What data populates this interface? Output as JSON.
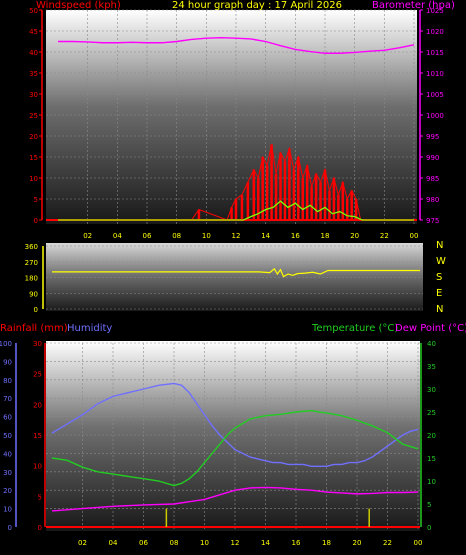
{
  "colors": {
    "background": "#000000",
    "wind": "#ff0000",
    "gust": "#ff0000",
    "wind_avg": "#7fff00",
    "barometer": "#ff00ff",
    "direction": "#ffff00",
    "rainfall": "#ff0000",
    "humidity": "#7070ff",
    "temperature": "#22cc22",
    "dewpoint": "#ff00ff",
    "rain_bars": "#cccc00",
    "title": "#ffff00"
  },
  "chart_data": [
    {
      "type": "line",
      "title": "24 hour graph day : 17 April 2026",
      "ylabel": "Windspeed (kph)",
      "y2label": "Barometer (hpa)",
      "x_ticks": [
        "02",
        "04",
        "06",
        "08",
        "10",
        "12",
        "14",
        "16",
        "18",
        "20",
        "22",
        "00"
      ],
      "ylim": [
        0,
        50
      ],
      "y_ticks": [
        "0",
        "5",
        "10",
        "15",
        "20",
        "25",
        "30",
        "35",
        "40",
        "45",
        "50"
      ],
      "y2lim": [
        975,
        1025
      ],
      "y2_ticks": [
        "975",
        "980",
        "985",
        "990",
        "995",
        "1000",
        "1005",
        "1010",
        "1015",
        "1020",
        "1025"
      ],
      "series": [
        {
          "name": "Barometer (hpa)",
          "axis": "right",
          "x": [
            0,
            1,
            2,
            3,
            4,
            5,
            6,
            7,
            8,
            9,
            10,
            11,
            12,
            13,
            14,
            15,
            16,
            17,
            18,
            19,
            20,
            21,
            22,
            23,
            24
          ],
          "values": [
            1017.5,
            1017.5,
            1017.4,
            1017.2,
            1017.2,
            1017.3,
            1017.2,
            1017.2,
            1017.5,
            1018.0,
            1018.3,
            1018.4,
            1018.3,
            1018.1,
            1017.5,
            1016.5,
            1015.6,
            1015.1,
            1014.7,
            1014.7,
            1014.9,
            1015.2,
            1015.4,
            1016.0,
            1016.7
          ]
        },
        {
          "name": "Windspeed (kph)",
          "axis": "left",
          "x": [
            0,
            9.0,
            9.5,
            11.4,
            11.7,
            12.0,
            12.4,
            12.8,
            13.2,
            13.5,
            13.8,
            14.1,
            14.4,
            14.7,
            15.0,
            15.3,
            15.6,
            15.9,
            16.2,
            16.5,
            16.8,
            17.1,
            17.4,
            17.7,
            18.0,
            18.3,
            18.6,
            18.9,
            19.2,
            19.5,
            19.8,
            20.1,
            20.4,
            24
          ],
          "values": [
            0,
            0,
            2.5,
            0,
            3,
            5,
            6,
            9,
            12,
            10,
            15,
            13,
            18,
            11,
            16,
            14,
            17,
            12,
            15,
            10,
            13,
            8,
            11,
            9,
            12,
            7,
            10,
            6,
            9,
            5,
            7,
            5,
            0,
            0
          ]
        },
        {
          "name": "Average wind",
          "axis": "left",
          "x": [
            0,
            12.5,
            13.0,
            13.5,
            14.0,
            14.5,
            15.0,
            15.5,
            16.0,
            16.5,
            17.0,
            17.5,
            18.0,
            18.5,
            19.0,
            19.5,
            20.0,
            20.5,
            24
          ],
          "values": [
            0,
            0,
            0.8,
            1.5,
            2.5,
            3,
            4.5,
            3,
            4,
            2.5,
            3.5,
            2,
            3,
            1.5,
            2,
            1,
            0.8,
            0,
            0
          ]
        }
      ]
    },
    {
      "type": "line",
      "ylabel": "Wind direction",
      "y_ticks": [
        "0",
        "90",
        "180",
        "270",
        "360"
      ],
      "y2_ticks": [
        "N",
        "W",
        "S",
        "E",
        "N"
      ],
      "ylim": [
        0,
        360
      ],
      "series": [
        {
          "name": "Wind direction",
          "x": [
            0,
            13.5,
            14.2,
            14.5,
            14.7,
            14.9,
            15.1,
            15.4,
            15.7,
            16.0,
            16.5,
            17.0,
            17.5,
            18.0,
            24
          ],
          "values": [
            212,
            212,
            208,
            230,
            200,
            225,
            185,
            200,
            192,
            202,
            205,
            210,
            200,
            220,
            220
          ]
        }
      ]
    },
    {
      "type": "line",
      "ylabel": "Rainfall (mm)",
      "y_ticks": [
        "0",
        "5",
        "10",
        "15",
        "20",
        "25",
        "30"
      ],
      "ylim": [
        0,
        30
      ],
      "humidity_ticks": [
        "0",
        "10",
        "20",
        "30",
        "40",
        "50",
        "60",
        "70",
        "80",
        "90",
        "100"
      ],
      "y2label": "Temperature (°C)",
      "y2_ticks": [
        "0",
        "5",
        "10",
        "15",
        "20",
        "25",
        "30",
        "35",
        "40"
      ],
      "y2lim": [
        0,
        40
      ],
      "legend": [
        "Rainfall (mm)",
        "Humidity",
        "Temperature (°C)",
        "Dew Point (°C)"
      ],
      "x_ticks": [
        "02",
        "04",
        "06",
        "08",
        "10",
        "12",
        "14",
        "16",
        "18",
        "20",
        "22",
        "00"
      ],
      "series": [
        {
          "name": "Humidity",
          "axis": "humidity",
          "x": [
            0,
            1,
            2,
            3,
            4,
            5,
            6,
            7,
            8,
            8.5,
            9.0,
            9.5,
            10.0,
            10.5,
            11.0,
            11.5,
            12.0,
            12.5,
            13.0,
            13.5,
            14.0,
            14.5,
            15.0,
            15.5,
            16.0,
            16.5,
            17.0,
            17.5,
            18.0,
            18.5,
            19.0,
            19.5,
            20.0,
            20.5,
            21.0,
            21.5,
            22.0,
            22.5,
            23.0,
            23.5,
            24
          ],
          "values": [
            51,
            56,
            61,
            67,
            71,
            73,
            75,
            77,
            78,
            77,
            73,
            67,
            61,
            55,
            50,
            46,
            42,
            40,
            38,
            37,
            36,
            35,
            35,
            34,
            34,
            34,
            33,
            33,
            33,
            34,
            34,
            35,
            35,
            36,
            38,
            41,
            44,
            47,
            50,
            52,
            53
          ]
        },
        {
          "name": "Temperature (°C)",
          "axis": "right",
          "x": [
            0,
            1,
            2,
            3,
            4,
            5,
            6,
            7,
            8,
            8.5,
            9.0,
            9.5,
            10.0,
            10.5,
            11.0,
            11.5,
            12.0,
            12.5,
            13.0,
            14.0,
            15.0,
            16.0,
            17.0,
            17.5,
            18.0,
            19.0,
            20.0,
            21.0,
            22.0,
            23.0,
            24
          ],
          "values": [
            15,
            14.5,
            13,
            12,
            11.5,
            11,
            10.5,
            10,
            9,
            9.5,
            10.5,
            12,
            14,
            16,
            18,
            20,
            21.5,
            22.5,
            23.5,
            24.2,
            24.5,
            25,
            25.3,
            25,
            24.8,
            24.2,
            23.2,
            22,
            20.5,
            18,
            17
          ]
        },
        {
          "name": "Dew Point (°C)",
          "axis": "right",
          "x": [
            0,
            2,
            4,
            6,
            8,
            9,
            10,
            11,
            12,
            13,
            14,
            15,
            16,
            17,
            18,
            19,
            20,
            21,
            22,
            23,
            24
          ],
          "values": [
            3.5,
            4,
            4.5,
            4.8,
            5,
            5.5,
            6,
            7,
            8,
            8.5,
            8.6,
            8.5,
            8.2,
            8,
            7.6,
            7.4,
            7.2,
            7.3,
            7.5,
            7.5,
            7.6
          ]
        },
        {
          "name": "Rainfall (mm)",
          "axis": "left",
          "type": "bar",
          "x": [
            7.5,
            20.8
          ],
          "values": [
            3,
            3
          ]
        }
      ]
    }
  ]
}
